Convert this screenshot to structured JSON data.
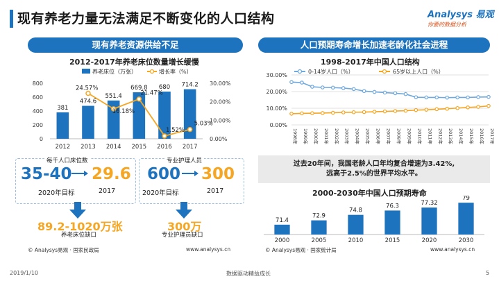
{
  "page": {
    "title": "现有养老力量无法满足不断变化的人口结构",
    "logo_main": "Analysys 易观",
    "logo_sub": "你要的数据分析",
    "date": "2019/1/10",
    "footer_center": "数据驱动精益成长",
    "page_number": "5"
  },
  "left": {
    "header": "现有养老资源供给不足",
    "chart_title": "2012-2017年养老床位数量增长缓慢",
    "source": "© Analysys易观 · 国家民政局",
    "site": "www.analysys.cn",
    "card1": {
      "label": "每千人口床位数",
      "from_value": "35-40",
      "to_value": "29.6",
      "from_caption": "2020年目标",
      "to_caption": "2017",
      "gap_value": "89.2-1020万张",
      "gap_caption": "养老床位缺口"
    },
    "card2": {
      "label": "专业护理人员",
      "from_value": "600",
      "to_value": "300",
      "from_caption": "2020年目标",
      "to_caption": "2017",
      "gap_value": "300万",
      "gap_caption": "专业护理员缺口"
    }
  },
  "right": {
    "header": "人口预期寿命增长加速老龄化社会进程",
    "chart1_title": "1998-2017年中国人口结构",
    "highlight_line1": "过去20年间，我国老龄人口年均复合增速为3.42%,",
    "highlight_line2": "远高于2.5%的世界平均水平。",
    "chart2_title": "2000-2030年中国人口预期寿命",
    "source": "© Analysys易观 · 国家统计局",
    "site": "www.analysys.cn"
  },
  "colors": {
    "blue": "#1e73be",
    "orange": "#f5a623",
    "light_blue": "#6fa8dc"
  },
  "chart_data": [
    {
      "type": "bar",
      "title": "2012-2017年养老床位数量增长缓慢",
      "categories": [
        "2012",
        "2013",
        "2014",
        "2015",
        "2016",
        "2017"
      ],
      "series": [
        {
          "name": "养老床位（万张）",
          "axis": "left",
          "type": "bar",
          "values": [
            381,
            474.6,
            551.4,
            669.8,
            680,
            714.2
          ],
          "labels": [
            "381",
            "474.6",
            "551.4",
            "669.8",
            "680",
            "714.2"
          ]
        },
        {
          "name": "增长率（%）",
          "axis": "right",
          "type": "line",
          "values": [
            null,
            24.57,
            16.18,
            21.47,
            1.52,
            5.03
          ],
          "labels": [
            "",
            "24.57%",
            "16.18%",
            "21.47%",
            "1.52%",
            "5.03%"
          ]
        }
      ],
      "ylim_left": [
        0,
        800
      ],
      "yticks_left": [
        "0",
        "200",
        "400",
        "600",
        "800"
      ],
      "ylim_right": [
        0,
        30
      ],
      "yticks_right": [
        "0.00%",
        "10.00%",
        "20.00%",
        "30.00%"
      ]
    },
    {
      "type": "line",
      "title": "1998-2017年中国人口结构",
      "x": [
        "1998年",
        "1999年",
        "2000年",
        "2001年",
        "2002年",
        "2003年",
        "2004年",
        "2005年",
        "2006年",
        "2007年",
        "2008年",
        "2009年",
        "2010年",
        "2011年",
        "2012年",
        "2013年",
        "2014年",
        "2015年",
        "2016年",
        "2017年"
      ],
      "series": [
        {
          "name": "0-14岁人口（%）",
          "values": [
            25.7,
            25.4,
            22.9,
            22.5,
            22.4,
            22.1,
            21.5,
            20.3,
            19.8,
            19.4,
            19.0,
            18.5,
            16.6,
            16.5,
            16.5,
            16.4,
            16.5,
            16.5,
            16.7,
            16.8
          ]
        },
        {
          "name": "65岁以上人口（%）",
          "values": [
            6.7,
            6.9,
            7.0,
            7.1,
            7.3,
            7.5,
            7.6,
            7.7,
            7.9,
            8.1,
            8.3,
            8.5,
            8.9,
            9.1,
            9.4,
            9.7,
            10.1,
            10.5,
            10.8,
            11.4
          ]
        }
      ],
      "ylim": [
        0,
        30
      ],
      "yticks": [
        "0.00%",
        "10.00%",
        "20.00%",
        "30.00%"
      ]
    },
    {
      "type": "bar",
      "title": "2000-2030年中国人口预期寿命",
      "categories": [
        "2000",
        "2005",
        "2010",
        "2015",
        "2020",
        "2030"
      ],
      "values": [
        71.4,
        72.9,
        74.8,
        76.3,
        77.32,
        79
      ],
      "labels": [
        "71.4",
        "72.9",
        "74.8",
        "76.3",
        "77.32",
        "79"
      ]
    }
  ]
}
